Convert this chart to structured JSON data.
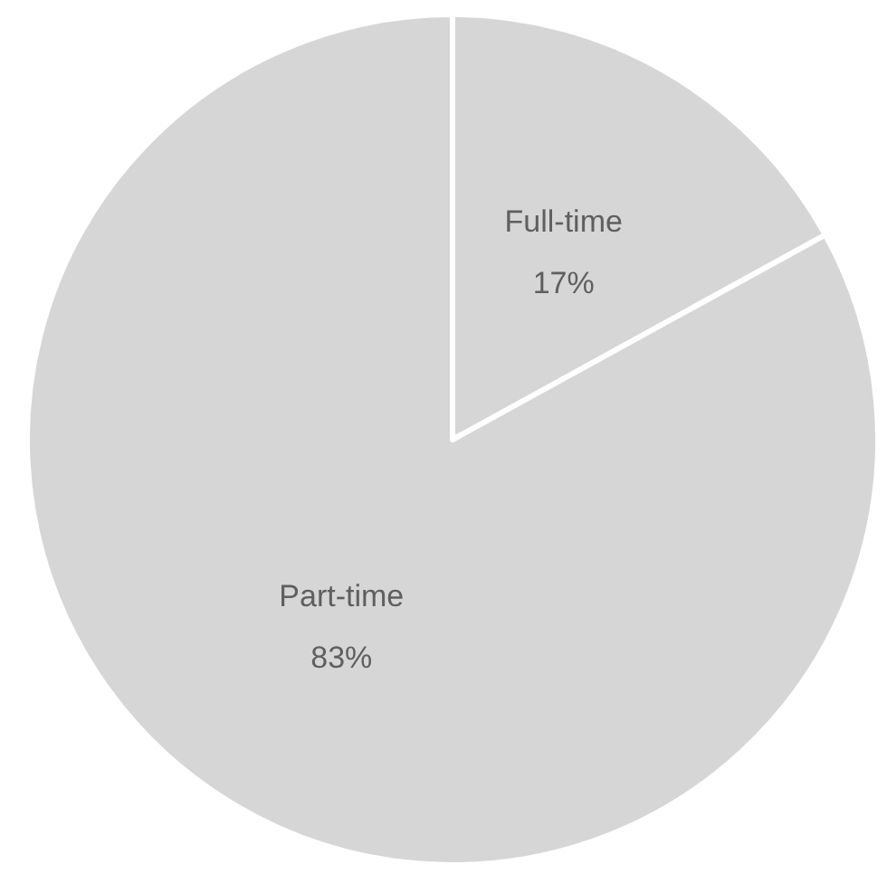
{
  "chart_data": {
    "type": "pie",
    "categories": [
      "Full-time",
      "Part-time"
    ],
    "values": [
      17,
      83
    ],
    "colors": [
      "#d6d6d6",
      "#d6d6d6"
    ],
    "value_labels": [
      "17%",
      "83%"
    ]
  }
}
